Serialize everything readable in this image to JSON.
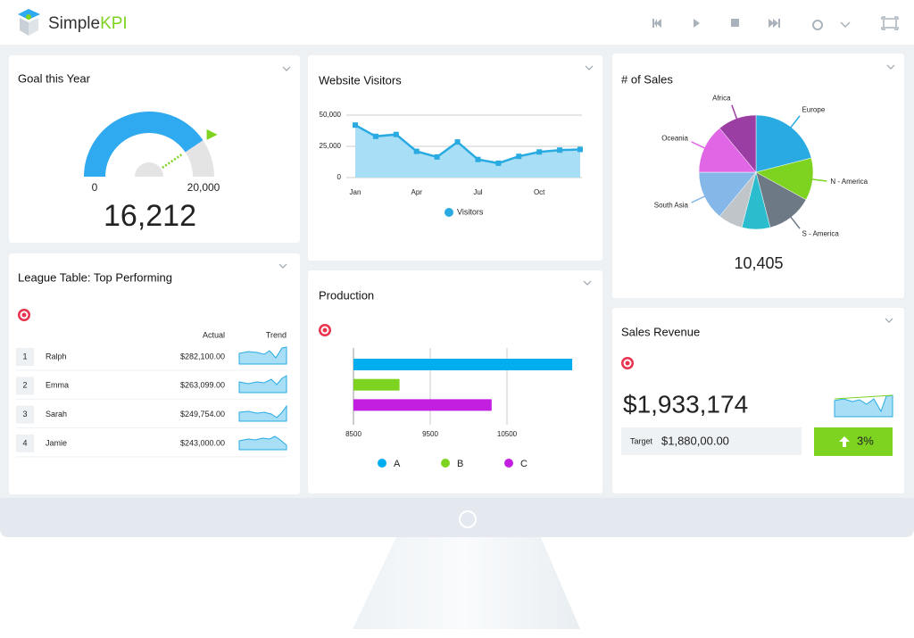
{
  "header": {
    "brand": "Simple",
    "brand_accent": "KPI"
  },
  "chart_data": [
    {
      "type": "gauge",
      "title": "Goal this Year",
      "values": [
        16212
      ],
      "value_labels": [
        "16,212"
      ],
      "ylim": [
        0,
        20000
      ],
      "yticks": [
        0,
        {
          "value": 20000,
          "label": "20,000"
        }
      ],
      "color": "#2fa9f0",
      "track_color": "#e4e4e4",
      "needle_color": "#7ed321"
    },
    {
      "type": "line",
      "title": "Website Visitors",
      "categories": [
        "Jan",
        null,
        null,
        "Apr",
        null,
        null,
        "Jul",
        null,
        null,
        "Oct",
        null,
        null
      ],
      "series": [
        {
          "name": "Visitors",
          "color": "#29abe2",
          "fill": "#a8def6",
          "values": [
            42000,
            33000,
            34500,
            21000,
            16500,
            28500,
            14500,
            11500,
            17000,
            20500,
            22000,
            22500
          ]
        }
      ],
      "ylim": [
        0,
        50000
      ],
      "yticks": [
        0,
        {
          "value": 25000,
          "label": "25,000"
        },
        {
          "value": 50000,
          "label": "50,000"
        }
      ],
      "grid": true
    },
    {
      "type": "pie",
      "title": "# of Sales",
      "total": "10,405",
      "categories": [
        "Europe",
        "N - America",
        "S - America",
        null,
        null,
        "South Asia",
        "Oceania",
        "Africa"
      ],
      "values": [
        21,
        12,
        13,
        8,
        7,
        14,
        14,
        11
      ],
      "colors": [
        "#29abe2",
        "#7ed321",
        "#6d7a86",
        "#2bbccd",
        "#bfc5c9",
        "#85b8e8",
        "#e066e6",
        "#9b3ea3"
      ]
    },
    {
      "type": "hbar",
      "title": "Production",
      "categories": [
        "A",
        "B",
        "C"
      ],
      "values": [
        11350,
        9100,
        10300
      ],
      "colors": [
        "#00aeef",
        "#7ed321",
        "#c21fe0"
      ],
      "xlim": [
        8500,
        11500
      ],
      "xticks": [
        8500,
        9500,
        10500
      ],
      "grid": true
    }
  ],
  "league_table": {
    "title": "League Table: Top Performing",
    "columns": [
      "Actual",
      "Trend"
    ],
    "rows": [
      [
        "1",
        "Ralph",
        "$282,100.00"
      ],
      [
        "2",
        "Emma",
        "$263,099.00"
      ],
      [
        "3",
        "Sarah",
        "$249,754.00"
      ],
      [
        "4",
        "Jamie",
        "$243,000.00"
      ]
    ]
  },
  "sales_revenue": {
    "title": "Sales Revenue",
    "value": "$1,933,174",
    "target_label": "Target",
    "target": "$1,880,00.00",
    "change": "3%"
  }
}
